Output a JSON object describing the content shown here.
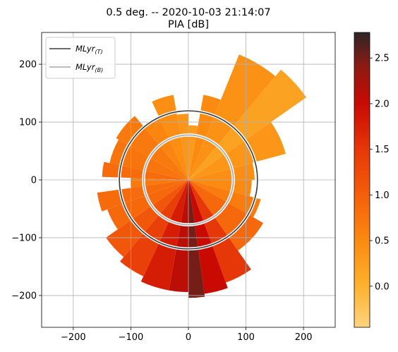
{
  "chart_data": {
    "type": "heatmap",
    "title": "0.5 deg. -- 2020-10-03 21:14:07",
    "subtitle": "PIA [dB]",
    "xlim": [
      -255,
      255
    ],
    "ylim": [
      -255,
      255
    ],
    "xticks": [
      -200,
      -100,
      0,
      100,
      200
    ],
    "yticks": [
      -200,
      -100,
      0,
      100,
      200
    ],
    "xtick_labels": [
      "−200",
      "−100",
      "0",
      "100",
      "200"
    ],
    "ytick_labels": [
      "−200",
      "−100",
      "0",
      "100",
      "200"
    ],
    "grid": true,
    "legend": {
      "placement": "top-left",
      "entries": [
        {
          "base": "MLyr",
          "sub": "(T)",
          "color": "#3a3a3a"
        },
        {
          "base": "MLyr",
          "sub": "(B)",
          "color": "#a6a6a6"
        }
      ]
    },
    "rings": [
      {
        "name": "MLyr(T)",
        "radius": 120,
        "color": "#3a3a3a"
      },
      {
        "name": "MLyr(B)",
        "radius": 78,
        "color": "#a6a6a6"
      }
    ],
    "colorbar": {
      "range": [
        -0.45,
        2.78
      ],
      "ticks": [
        0.0,
        0.5,
        1.0,
        1.5,
        2.0,
        2.5
      ],
      "tick_labels": [
        "0.0",
        "0.5",
        "1.0",
        "1.5",
        "2.0",
        "2.5"
      ],
      "colormap": [
        {
          "v": -0.45,
          "c": "#fed47f"
        },
        {
          "v": 0.0,
          "c": "#fdb22e"
        },
        {
          "v": 0.5,
          "c": "#fb8a10"
        },
        {
          "v": 1.0,
          "c": "#f45f0a"
        },
        {
          "v": 1.5,
          "c": "#e63708"
        },
        {
          "v": 2.0,
          "c": "#c90a03"
        },
        {
          "v": 2.4,
          "c": "#8e1a12"
        },
        {
          "v": 2.78,
          "c": "#2e2626"
        }
      ]
    },
    "sectors": [
      {
        "az_from": 0,
        "az_to": 10,
        "r_max": 95,
        "pia": 0.3
      },
      {
        "az_from": 10,
        "az_to": 22,
        "r_max": 150,
        "pia": 0.5
      },
      {
        "az_from": 22,
        "az_to": 40,
        "r_max": 235,
        "pia": 0.4
      },
      {
        "az_from": 40,
        "az_to": 55,
        "r_max": 250,
        "pia": 0.2
      },
      {
        "az_from": 55,
        "az_to": 75,
        "r_max": 175,
        "pia": 0.35
      },
      {
        "az_from": 75,
        "az_to": 90,
        "r_max": 115,
        "pia": 0.45
      },
      {
        "az_from": 90,
        "az_to": 105,
        "r_max": 110,
        "pia": 0.5
      },
      {
        "az_from": 105,
        "az_to": 120,
        "r_max": 130,
        "pia": 0.65
      },
      {
        "az_from": 120,
        "az_to": 145,
        "r_max": 150,
        "pia": 0.9
      },
      {
        "az_from": 145,
        "az_to": 160,
        "r_max": 190,
        "pia": 1.5
      },
      {
        "az_from": 160,
        "az_to": 172,
        "r_max": 200,
        "pia": 2.0
      },
      {
        "az_from": 172,
        "az_to": 180,
        "r_max": 205,
        "pia": 2.5
      },
      {
        "az_from": 180,
        "az_to": 190,
        "r_max": 195,
        "pia": 2.1
      },
      {
        "az_from": 190,
        "az_to": 205,
        "r_max": 195,
        "pia": 1.8
      },
      {
        "az_from": 205,
        "az_to": 220,
        "r_max": 185,
        "pia": 1.4
      },
      {
        "az_from": 220,
        "az_to": 235,
        "r_max": 175,
        "pia": 1.1
      },
      {
        "az_from": 235,
        "az_to": 250,
        "r_max": 150,
        "pia": 0.9
      },
      {
        "az_from": 250,
        "az_to": 262,
        "r_max": 160,
        "pia": 0.85
      },
      {
        "az_from": 262,
        "az_to": 272,
        "r_max": 100,
        "pia": 0.7
      },
      {
        "az_from": 272,
        "az_to": 282,
        "r_max": 150,
        "pia": 0.85
      },
      {
        "az_from": 282,
        "az_to": 300,
        "r_max": 140,
        "pia": 0.75
      },
      {
        "az_from": 300,
        "az_to": 320,
        "r_max": 145,
        "pia": 0.7
      },
      {
        "az_from": 320,
        "az_to": 335,
        "r_max": 120,
        "pia": 0.55
      },
      {
        "az_from": 335,
        "az_to": 350,
        "r_max": 150,
        "pia": 0.45
      },
      {
        "az_from": 350,
        "az_to": 360,
        "r_max": 115,
        "pia": 0.35
      }
    ]
  }
}
